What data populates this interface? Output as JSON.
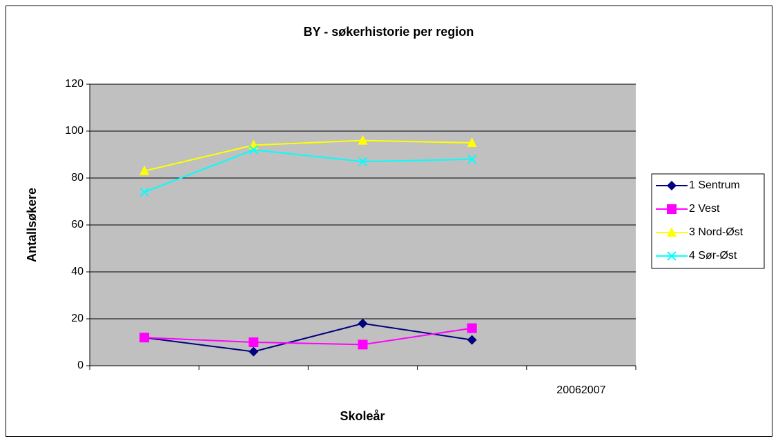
{
  "chart_data": {
    "type": "line",
    "title": "BY - søkerhistorie per region",
    "x_label": "Skoleår",
    "y_label": "Antallsøkere",
    "categories": [
      null,
      null,
      null,
      null,
      "20062007"
    ],
    "series": [
      {
        "name": "1 Sentrum",
        "color": "#000080",
        "marker": "diamond",
        "values": [
          12,
          6,
          18,
          11,
          null
        ]
      },
      {
        "name": "2 Vest",
        "color": "#ff00ff",
        "marker": "square",
        "values": [
          12,
          10,
          9,
          16,
          null
        ]
      },
      {
        "name": "3 Nord-Øst",
        "color": "#ffff00",
        "marker": "triangle",
        "values": [
          83,
          94,
          96,
          95,
          null
        ]
      },
      {
        "name": "4 Sør-Øst",
        "color": "#00ffff",
        "marker": "x",
        "values": [
          74,
          92,
          87,
          88,
          null
        ]
      }
    ],
    "ylim": [
      0,
      120
    ],
    "yticks": [
      0,
      20,
      40,
      60,
      80,
      100,
      120
    ],
    "grid": true,
    "plot_background": "#c0c0c0",
    "legend": "right"
  }
}
